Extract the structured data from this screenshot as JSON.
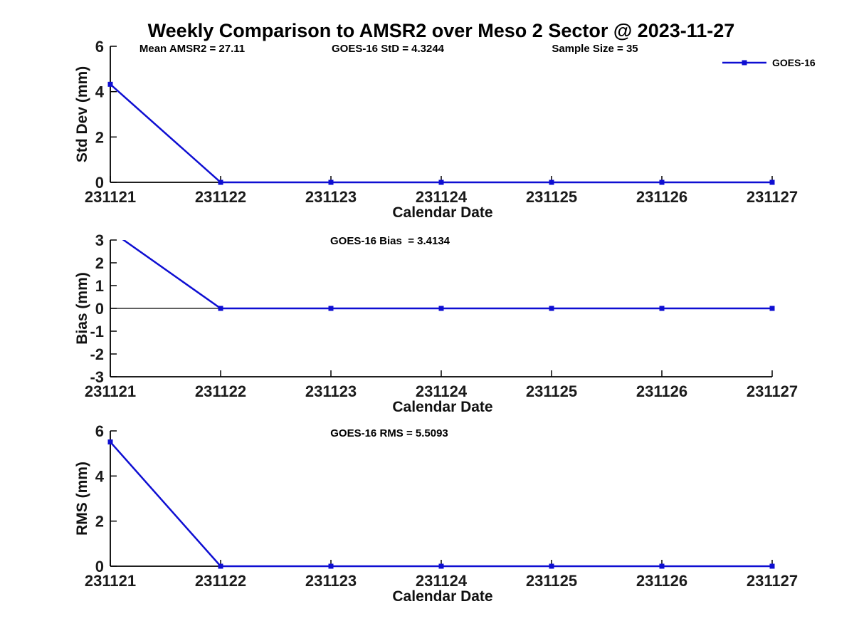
{
  "figure": {
    "title": "Weekly Comparison to AMSR2 over Meso 2 Sector @ 2023-11-27"
  },
  "stats": {
    "mean_amsr2": 27.11,
    "goes16_std": 4.3244,
    "sample_size": 35,
    "goes16_bias": 3.4134,
    "goes16_rms": 5.5093
  },
  "chart_data": [
    {
      "type": "line",
      "categories": [
        "231121",
        "231122",
        "231123",
        "231124",
        "231125",
        "231126",
        "231127"
      ],
      "series": [
        {
          "name": "GOES-16",
          "values": [
            4.3244,
            0,
            0,
            0,
            0,
            0,
            0
          ]
        }
      ],
      "ylabel": "Std Dev (mm)",
      "xlabel": "Calendar Date",
      "ylim": [
        0,
        6
      ],
      "yticks": [
        0,
        2,
        4,
        6
      ],
      "zero_line": false,
      "annotations": [
        "Mean AMSR2 = 27.11",
        "GOES-16 StD = 4.3244",
        "Sample Size = 35"
      ],
      "legend": {
        "label": "GOES-16",
        "position": "top-right"
      },
      "line_color": "#0E0ED2",
      "marker": "square",
      "grid": false
    },
    {
      "type": "line",
      "categories": [
        "231121",
        "231122",
        "231123",
        "231124",
        "231125",
        "231126",
        "231127"
      ],
      "series": [
        {
          "name": "GOES-16",
          "values": [
            3.4134,
            0,
            0,
            0,
            0,
            0,
            0
          ]
        }
      ],
      "ylabel": "Bias (mm)",
      "xlabel": "Calendar Date",
      "ylim": [
        -3,
        3
      ],
      "yticks": [
        3,
        2,
        1,
        0,
        -1,
        -2,
        -3
      ],
      "zero_line": true,
      "annotations": [
        "GOES-16 Bias  = 3.4134"
      ],
      "legend": null,
      "line_color": "#0E0ED2",
      "marker": "square",
      "grid": false
    },
    {
      "type": "line",
      "categories": [
        "231121",
        "231122",
        "231123",
        "231124",
        "231125",
        "231126",
        "231127"
      ],
      "series": [
        {
          "name": "GOES-16",
          "values": [
            5.5093,
            0,
            0,
            0,
            0,
            0,
            0
          ]
        }
      ],
      "ylabel": "RMS (mm)",
      "xlabel": "Calendar Date",
      "ylim": [
        0,
        6
      ],
      "yticks": [
        0,
        2,
        4,
        6
      ],
      "zero_line": false,
      "annotations": [
        "GOES-16 RMS = 5.5093"
      ],
      "legend": null,
      "line_color": "#0E0ED2",
      "marker": "square",
      "grid": false
    }
  ]
}
